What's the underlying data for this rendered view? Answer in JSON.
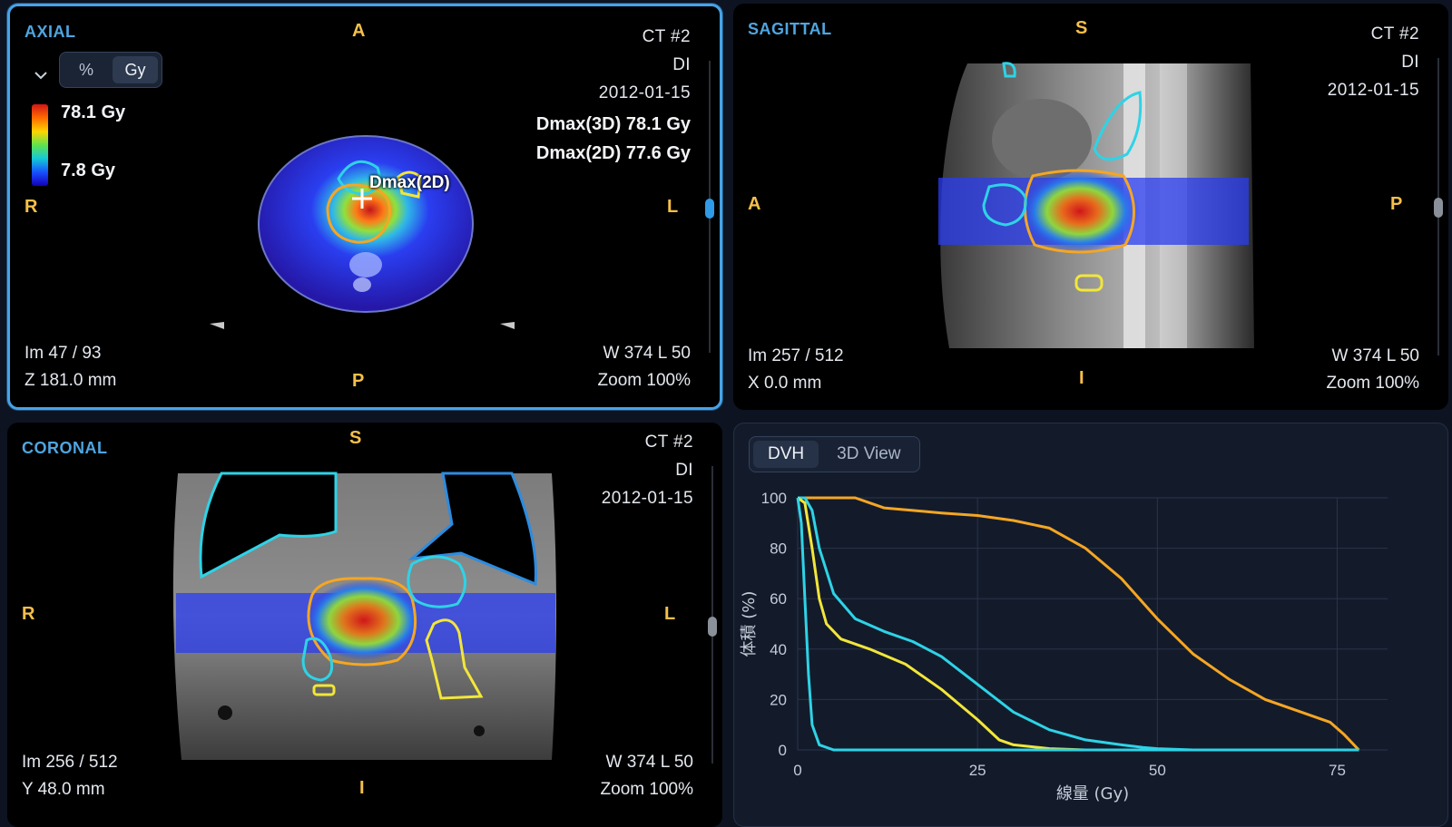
{
  "axial": {
    "title": "AXIAL",
    "orient": {
      "top": "A",
      "bottom": "P",
      "left": "R",
      "right": "L"
    },
    "study": "CT #2",
    "modality": "DI",
    "date": "2012-01-15",
    "image_index": "Im 47 / 93",
    "position": "Z 181.0 mm",
    "window": "W 374 L 50",
    "zoom": "Zoom 100%",
    "unit_toggle": {
      "percent_label": "%",
      "gy_label": "Gy",
      "selected": "Gy"
    },
    "colorbar": {
      "max_label": "78.1 Gy",
      "min_label": "7.8 Gy"
    },
    "dmax_3d": "Dmax(3D) 78.1 Gy",
    "dmax_2d": "Dmax(2D) 77.6 Gy",
    "dmax_marker_label": "Dmax(2D)"
  },
  "sagittal": {
    "title": "SAGITTAL",
    "orient": {
      "top": "S",
      "bottom": "I",
      "left": "A",
      "right": "P"
    },
    "study": "CT #2",
    "modality": "DI",
    "date": "2012-01-15",
    "image_index": "Im 257 / 512",
    "position": "X 0.0 mm",
    "window": "W 374 L 50",
    "zoom": "Zoom 100%"
  },
  "coronal": {
    "title": "CORONAL",
    "orient": {
      "top": "S",
      "bottom": "I",
      "left": "R",
      "right": "L"
    },
    "study": "CT #2",
    "modality": "DI",
    "date": "2012-01-15",
    "image_index": "Im 256 / 512",
    "position": "Y 48.0 mm",
    "window": "W 374 L 50",
    "zoom": "Zoom 100%"
  },
  "dvh_panel": {
    "tabs": [
      {
        "label": "DVH",
        "selected": true
      },
      {
        "label": "3D View",
        "selected": false
      }
    ]
  },
  "colors": {
    "accent": "#47a3e6",
    "orientation": "#f5c04a",
    "ptv": "#f5a623",
    "oar_cyan": "#2ed3e6",
    "oar_yellow": "#f2e63a"
  },
  "chart_data": {
    "type": "line",
    "title": "",
    "xlabel": "線量 (Gy)",
    "ylabel": "体積 (%)",
    "xlim": [
      0,
      82
    ],
    "ylim": [
      0,
      100
    ],
    "xticks": [
      0,
      25,
      50,
      75
    ],
    "yticks": [
      0,
      20,
      40,
      60,
      80,
      100
    ],
    "grid": true,
    "series": [
      {
        "color": "#f5a623",
        "x": [
          0,
          8,
          10,
          12,
          16,
          20,
          25,
          30,
          35,
          40,
          45,
          50,
          55,
          60,
          65,
          70,
          74,
          76,
          78
        ],
        "y": [
          100,
          100,
          98,
          96,
          95,
          94,
          93,
          91,
          88,
          80,
          68,
          52,
          38,
          28,
          20,
          15,
          11,
          6,
          0
        ]
      },
      {
        "color": "#2ed3e6",
        "x": [
          0,
          1,
          2,
          3,
          5,
          8,
          12,
          16,
          20,
          25,
          30,
          35,
          40,
          45,
          48,
          50,
          55,
          60,
          65,
          70,
          78
        ],
        "y": [
          100,
          100,
          95,
          80,
          62,
          52,
          47,
          43,
          37,
          26,
          15,
          8,
          4,
          2,
          1,
          0.5,
          0,
          0,
          0,
          0,
          0
        ]
      },
      {
        "color": "#f2e63a",
        "x": [
          0,
          1,
          2,
          3,
          4,
          6,
          10,
          15,
          20,
          25,
          28,
          30,
          35,
          40,
          45,
          50
        ],
        "y": [
          100,
          98,
          80,
          60,
          50,
          44,
          40,
          34,
          24,
          12,
          4,
          2,
          0.5,
          0,
          0,
          0
        ]
      },
      {
        "color": "#2ed3e6",
        "x": [
          0,
          0.5,
          1,
          1.5,
          2,
          3,
          5,
          10,
          40,
          78
        ],
        "y": [
          100,
          90,
          60,
          30,
          10,
          2,
          0,
          0,
          0,
          0
        ]
      }
    ]
  }
}
